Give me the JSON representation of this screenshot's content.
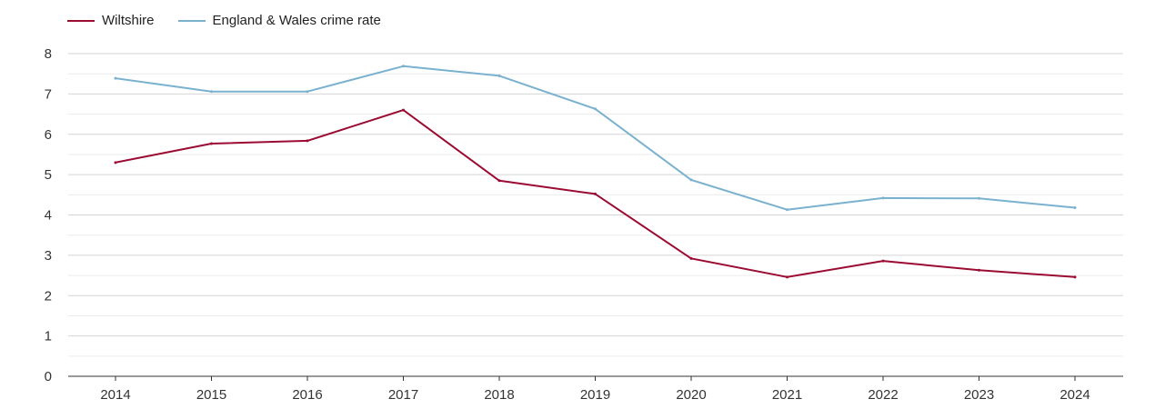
{
  "chart_data": {
    "type": "line",
    "title": "",
    "xlabel": "",
    "ylabel": "",
    "categories": [
      "2014",
      "2015",
      "2016",
      "2017",
      "2018",
      "2019",
      "2020",
      "2021",
      "2022",
      "2023",
      "2024"
    ],
    "ylim": [
      0,
      8
    ],
    "yticks": [
      0,
      1,
      2,
      3,
      4,
      5,
      6,
      7,
      8
    ],
    "grid": true,
    "legend_position": "top-left",
    "series": [
      {
        "name": "Wiltshire",
        "color": "#9b0b32",
        "values": [
          5.3,
          5.77,
          5.84,
          6.6,
          4.85,
          4.52,
          2.92,
          2.46,
          2.86,
          2.63,
          2.46
        ]
      },
      {
        "name": "England & Wales crime rate",
        "color": "#7ab1cf",
        "values": [
          7.39,
          7.06,
          7.06,
          7.69,
          7.45,
          6.63,
          4.87,
          4.13,
          4.42,
          4.41,
          4.18
        ]
      }
    ]
  }
}
